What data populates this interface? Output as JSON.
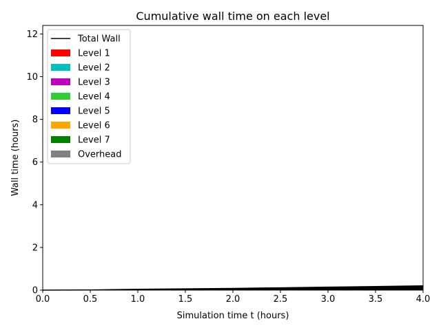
{
  "chart_data": {
    "type": "area",
    "title": "Cumulative wall time on each level",
    "xlabel": "Simulation time t (hours)",
    "ylabel": "Wall time (hours)",
    "xlim": [
      0,
      4
    ],
    "ylim": [
      0,
      12.4
    ],
    "x_ticks": [
      "0.0",
      "0.5",
      "1.0",
      "1.5",
      "2.0",
      "2.5",
      "3.0",
      "3.5",
      "4.0"
    ],
    "y_ticks": [
      "0",
      "2",
      "4",
      "6",
      "8",
      "10",
      "12"
    ],
    "grid": false,
    "legend_position": "top-left",
    "x": [
      0,
      0.5,
      1.0,
      1.5,
      2.0,
      2.5,
      3.0,
      3.5,
      4.0
    ],
    "total_wall": {
      "name": "Total Wall",
      "color": "#000000",
      "values": [
        0.0,
        0.01,
        0.04,
        0.06,
        0.08,
        0.11,
        0.14,
        0.17,
        0.2
      ]
    },
    "series": [
      {
        "name": "Level 1",
        "color": "#ff0000",
        "values": [
          0,
          0,
          0,
          0,
          0,
          0,
          0,
          0,
          0
        ]
      },
      {
        "name": "Level 2",
        "color": "#00bfbf",
        "values": [
          0,
          0,
          0,
          0,
          0,
          0,
          0,
          0,
          0
        ]
      },
      {
        "name": "Level 3",
        "color": "#bf00bf",
        "values": [
          0,
          0,
          0,
          0,
          0,
          0,
          0,
          0,
          0
        ]
      },
      {
        "name": "Level 4",
        "color": "#32cd32",
        "values": [
          0,
          0,
          0,
          0,
          0,
          0,
          0,
          0,
          0
        ]
      },
      {
        "name": "Level 5",
        "color": "#0000ff",
        "values": [
          0,
          0,
          0,
          0,
          0,
          0,
          0,
          0,
          0
        ]
      },
      {
        "name": "Level 6",
        "color": "#ffa500",
        "values": [
          0,
          0,
          0,
          0,
          0,
          0,
          0,
          0,
          0
        ]
      },
      {
        "name": "Level 7",
        "color": "#008000",
        "values": [
          0,
          0,
          0,
          0,
          0,
          0,
          0,
          0,
          0
        ]
      },
      {
        "name": "Overhead",
        "color": "#808080",
        "values": [
          0,
          0,
          0,
          0,
          0,
          0,
          0,
          0,
          0
        ]
      }
    ]
  }
}
